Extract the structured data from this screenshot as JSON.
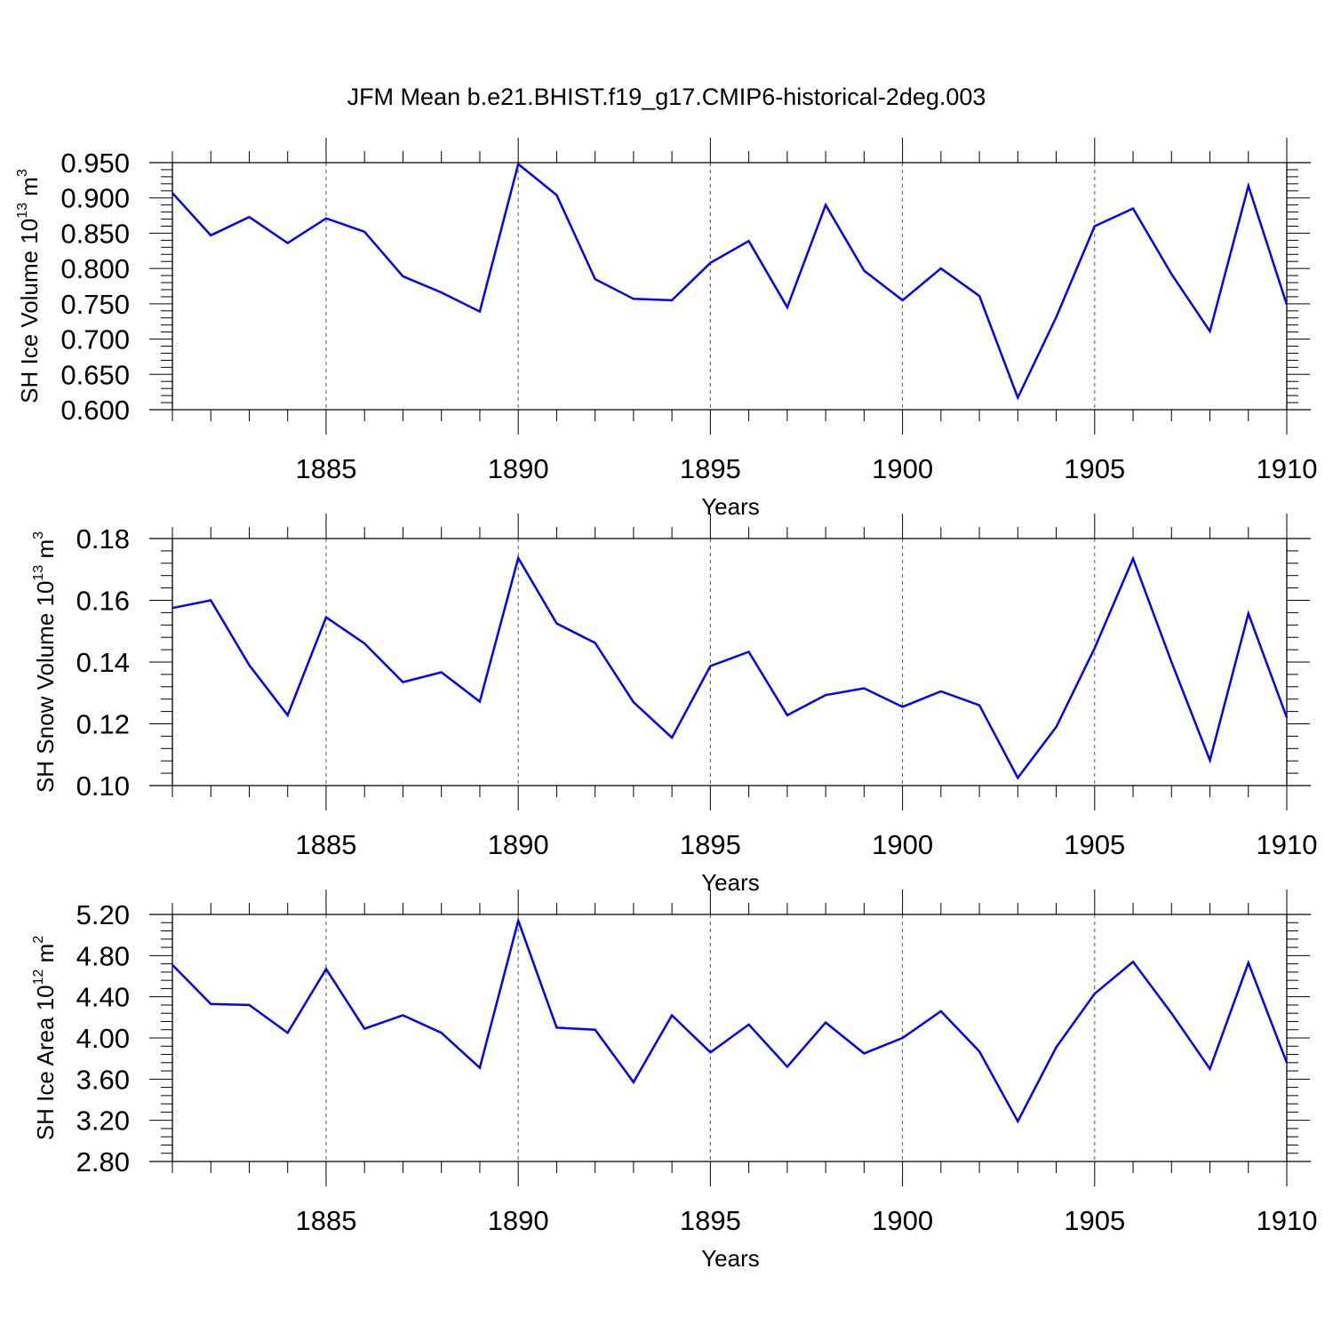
{
  "title": "JFM Mean b.e21.BHIST.f19_g17.CMIP6-historical-2deg.003",
  "colors": {
    "series": "#0000ff",
    "axis": "#000000",
    "grid": "#555555"
  },
  "chart_data": [
    {
      "type": "line",
      "xlabel": "Years",
      "ylabel": {
        "text": "SH Ice Volume 10",
        "sup1": "13",
        "unit": " m",
        "sup2": "3"
      },
      "x": [
        1881,
        1882,
        1883,
        1884,
        1885,
        1886,
        1887,
        1888,
        1889,
        1890,
        1891,
        1892,
        1893,
        1894,
        1895,
        1896,
        1897,
        1898,
        1899,
        1900,
        1901,
        1902,
        1903,
        1904,
        1905,
        1906,
        1907,
        1908,
        1909,
        1910
      ],
      "series": [
        {
          "name": "SH Ice Volume",
          "values": [
            0.907,
            0.847,
            0.873,
            0.836,
            0.871,
            0.852,
            0.789,
            0.766,
            0.739,
            0.948,
            0.904,
            0.785,
            0.757,
            0.755,
            0.808,
            0.839,
            0.745,
            0.89,
            0.797,
            0.755,
            0.8,
            0.761,
            0.617,
            0.731,
            0.86,
            0.885,
            0.792,
            0.711,
            0.917,
            0.749
          ]
        }
      ],
      "xlim": [
        1881,
        1910
      ],
      "ylim": [
        0.6,
        0.95
      ],
      "yticks": [
        0.6,
        0.65,
        0.7,
        0.75,
        0.8,
        0.85,
        0.9,
        0.95
      ],
      "ytick_labels": [
        "0.600",
        "0.650",
        "0.700",
        "0.750",
        "0.800",
        "0.850",
        "0.900",
        "0.950"
      ],
      "xticks": [
        1885,
        1890,
        1895,
        1900,
        1905,
        1910
      ],
      "xtick_labels": [
        "1885",
        "1890",
        "1895",
        "1900",
        "1905",
        "1910"
      ],
      "grid": "vertical dashed at major x ticks"
    },
    {
      "type": "line",
      "xlabel": "Years",
      "ylabel": {
        "text": "SH Snow Volume 10",
        "sup1": "13",
        "unit": " m",
        "sup2": "3"
      },
      "x": [
        1881,
        1882,
        1883,
        1884,
        1885,
        1886,
        1887,
        1888,
        1889,
        1890,
        1891,
        1892,
        1893,
        1894,
        1895,
        1896,
        1897,
        1898,
        1899,
        1900,
        1901,
        1902,
        1903,
        1904,
        1905,
        1906,
        1907,
        1908,
        1909,
        1910
      ],
      "series": [
        {
          "name": "SH Snow Volume",
          "values": [
            0.1575,
            0.16,
            0.139,
            0.1228,
            0.1545,
            0.146,
            0.1335,
            0.1367,
            0.1272,
            0.1737,
            0.1525,
            0.1462,
            0.127,
            0.1155,
            0.1387,
            0.1433,
            0.1228,
            0.1293,
            0.1315,
            0.1255,
            0.1305,
            0.126,
            0.1025,
            0.119,
            0.1445,
            0.1735,
            0.14,
            0.1082,
            0.1557,
            0.122
          ]
        }
      ],
      "xlim": [
        1881,
        1910
      ],
      "ylim": [
        0.1,
        0.18
      ],
      "yticks": [
        0.1,
        0.12,
        0.14,
        0.16,
        0.18
      ],
      "ytick_labels": [
        "0.10",
        "0.12",
        "0.14",
        "0.16",
        "0.18"
      ],
      "xticks": [
        1885,
        1890,
        1895,
        1900,
        1905,
        1910
      ],
      "xtick_labels": [
        "1885",
        "1890",
        "1895",
        "1900",
        "1905",
        "1910"
      ],
      "grid": "vertical dashed at major x ticks"
    },
    {
      "type": "line",
      "xlabel": "Years",
      "ylabel": {
        "text": "SH Ice Area 10",
        "sup1": "12",
        "unit": " m",
        "sup2": "2"
      },
      "x": [
        1881,
        1882,
        1883,
        1884,
        1885,
        1886,
        1887,
        1888,
        1889,
        1890,
        1891,
        1892,
        1893,
        1894,
        1895,
        1896,
        1897,
        1898,
        1899,
        1900,
        1901,
        1902,
        1903,
        1904,
        1905,
        1906,
        1907,
        1908,
        1909,
        1910
      ],
      "series": [
        {
          "name": "SH Ice Area",
          "values": [
            4.71,
            4.33,
            4.32,
            4.05,
            4.67,
            4.09,
            4.22,
            4.05,
            3.71,
            5.14,
            4.1,
            4.08,
            3.57,
            4.22,
            3.86,
            4.13,
            3.72,
            4.15,
            3.85,
            4.0,
            4.26,
            3.87,
            3.19,
            3.91,
            4.43,
            4.74,
            4.24,
            3.7,
            4.73,
            3.76
          ]
        }
      ],
      "xlim": [
        1881,
        1910
      ],
      "ylim": [
        2.8,
        5.2
      ],
      "yticks": [
        2.8,
        3.2,
        3.6,
        4.0,
        4.4,
        4.8,
        5.2
      ],
      "ytick_labels": [
        "2.80",
        "3.20",
        "3.60",
        "4.00",
        "4.40",
        "4.80",
        "5.20"
      ],
      "xticks": [
        1885,
        1890,
        1895,
        1900,
        1905,
        1910
      ],
      "xtick_labels": [
        "1885",
        "1890",
        "1895",
        "1900",
        "1905",
        "1910"
      ],
      "grid": "vertical dashed at major x ticks"
    }
  ]
}
